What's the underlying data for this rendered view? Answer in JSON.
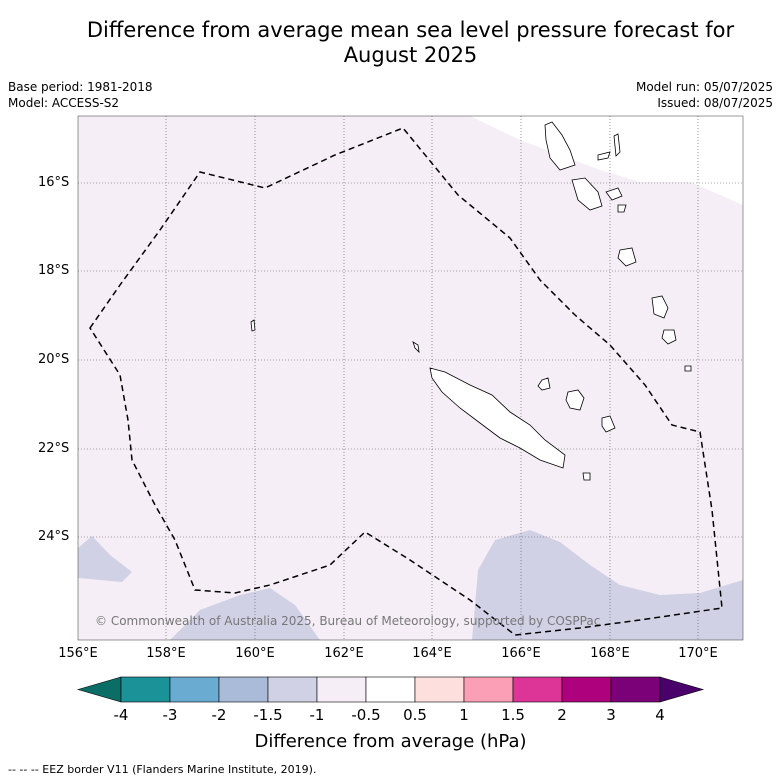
{
  "title_line1": "Difference from average mean sea level pressure forecast for",
  "title_line2": "August 2025",
  "base_period": "Base period: 1981-2018",
  "model": "Model: ACCESS-S2",
  "model_run": "Model run: 05/07/2025",
  "issued": "Issued: 08/07/2025",
  "copyright": "© Commonwealth of Australia 2025, Bureau of Meteorology, supported by COSPPac",
  "lat_ticks": [
    "16°S",
    "18°S",
    "20°S",
    "22°S",
    "24°S"
  ],
  "lon_ticks": [
    "156°E",
    "158°E",
    "160°E",
    "162°E",
    "164°E",
    "166°E",
    "168°E",
    "170°E"
  ],
  "colorbar": {
    "label": "Difference from average (hPa)",
    "ticks": [
      "-4",
      "-3",
      "-2",
      "-1.5",
      "-1",
      "-0.5",
      "0.5",
      "1",
      "1.5",
      "2",
      "3",
      "4"
    ],
    "colors": [
      "#0b6e66",
      "#1b9198",
      "#6aabd2",
      "#a9bbd8",
      "#d1d1e6",
      "#f5eef6",
      "#ffffff",
      "#fde0dd",
      "#fa9fb5",
      "#dd3497",
      "#ae017e",
      "#7a0177",
      "#49006a"
    ]
  },
  "map_colors": {
    "background": "#f5eef6",
    "low_anomaly": "#d1d1e6",
    "land_outline": "#000000"
  },
  "footnote": "--  --  -- EEZ border V11 (Flanders Marine Institute, 2019)."
}
